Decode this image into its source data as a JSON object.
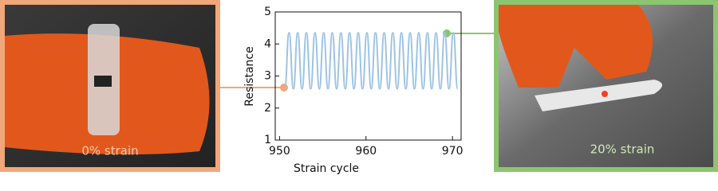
{
  "chart_data": {
    "type": "line",
    "xlabel": "Strain cycle",
    "ylabel": "Resistance",
    "xlim": [
      949.5,
      971
    ],
    "xticks": [
      950,
      960,
      970
    ],
    "ylim": [
      1,
      5
    ],
    "yticks": [
      1,
      2,
      3,
      4,
      5
    ],
    "series": [
      {
        "color": "#9dc3e6",
        "x": [
          950.6,
          951.1,
          951.6,
          952.1,
          952.6,
          953.1,
          953.6,
          954.1,
          954.6,
          955.1,
          955.6,
          956.1,
          956.6,
          957.1,
          957.6,
          958.1,
          958.6,
          959.1,
          959.6,
          960.1,
          960.6,
          961.1,
          961.6,
          962.1,
          962.6,
          963.1,
          963.6,
          964.1,
          964.6,
          965.1,
          965.6,
          966.1,
          966.6,
          967.1,
          967.6,
          968.1,
          968.6,
          969.1,
          969.6,
          970.1,
          970.6
        ],
        "values": [
          2.6,
          4.35,
          2.6,
          4.35,
          2.6,
          4.35,
          2.6,
          4.35,
          2.6,
          4.35,
          2.6,
          4.35,
          2.6,
          4.35,
          2.6,
          4.35,
          2.6,
          4.35,
          2.6,
          4.35,
          2.6,
          4.35,
          2.6,
          4.35,
          2.6,
          4.35,
          2.6,
          4.35,
          2.6,
          4.35,
          2.6,
          4.35,
          2.6,
          4.35,
          2.6,
          4.35,
          2.6,
          4.35,
          2.6,
          4.35,
          2.6
        ]
      }
    ]
  },
  "photos": [
    {
      "label": "0% strain"
    },
    {
      "label": "20% strain"
    }
  ]
}
